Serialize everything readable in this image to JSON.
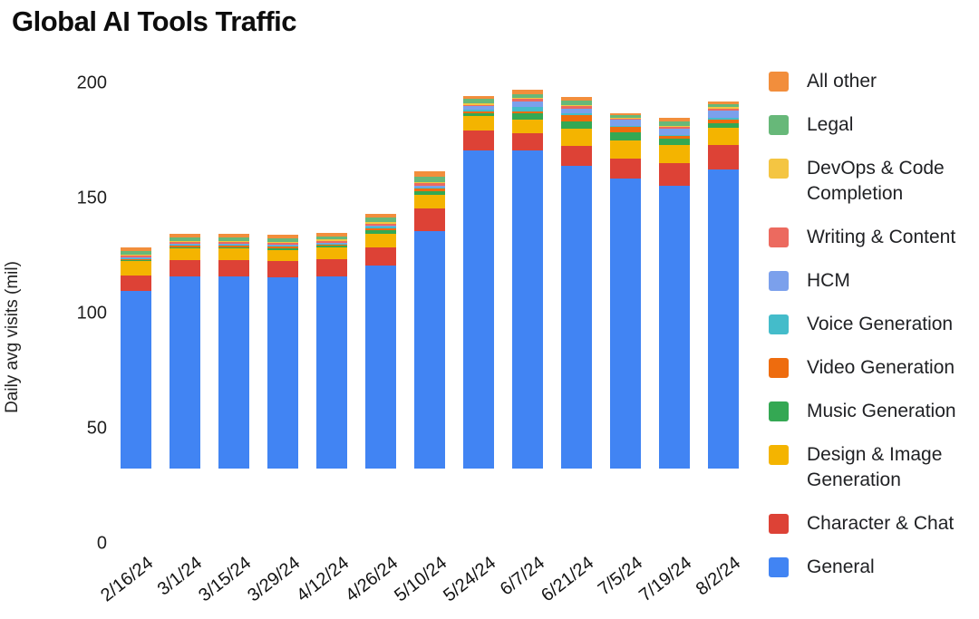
{
  "title": "Global AI Tools Traffic",
  "y_axis_label": "Daily avg visits (mil)",
  "chart_data": {
    "type": "bar",
    "subtype": "stacked-vertical",
    "title": "Global AI Tools Traffic",
    "xlabel": "",
    "ylabel": "Daily avg visits (mil)",
    "ylim": [
      0,
      200
    ],
    "yticks": [
      0,
      50,
      100,
      150,
      200
    ],
    "grid": false,
    "legend_position": "right",
    "categories": [
      "2/16/24",
      "3/1/24",
      "3/15/24",
      "3/29/24",
      "4/12/24",
      "4/26/24",
      "5/10/24",
      "5/24/24",
      "6/7/24",
      "6/21/24",
      "7/5/24",
      "7/19/24",
      "8/2/24"
    ],
    "series": [
      {
        "name": "General",
        "color": "#4184f3",
        "values": [
          77,
          83.5,
          83.5,
          83,
          83.5,
          88,
          103,
          138,
          138,
          131.5,
          126,
          123,
          130
        ]
      },
      {
        "name": "Character & Chat",
        "color": "#dd4236",
        "values": [
          7,
          7,
          7,
          7,
          7.5,
          8,
          10,
          9,
          7.5,
          8.5,
          8.5,
          9.5,
          10.5
        ]
      },
      {
        "name": "Design & Image Generation",
        "color": "#f4b400",
        "values": [
          6,
          5,
          5,
          5,
          5,
          6,
          6,
          6,
          6,
          7.5,
          8,
          8,
          7.5
        ]
      },
      {
        "name": "Music Generation",
        "color": "#34a853",
        "values": [
          0.5,
          0.7,
          0.7,
          0.7,
          0.7,
          1.5,
          1.5,
          1.5,
          3,
          3.5,
          3.5,
          3,
          2
        ]
      },
      {
        "name": "Video Generation",
        "color": "#ee6c0e",
        "values": [
          0.4,
          0.6,
          0.6,
          0.6,
          0.6,
          1,
          1,
          0.5,
          0.5,
          2.5,
          2.5,
          1,
          1.5
        ]
      },
      {
        "name": "Voice Generation",
        "color": "#44bcca",
        "values": [
          0.3,
          0.4,
          0.4,
          0.4,
          0.4,
          0.5,
          0.5,
          1,
          2,
          1,
          0.5,
          0.5,
          1
        ]
      },
      {
        "name": "HCM",
        "color": "#7ba0ec",
        "values": [
          0.4,
          0.5,
          0.5,
          0.5,
          0.5,
          0.5,
          1,
          1.5,
          2.5,
          2,
          2.5,
          2.5,
          3
        ]
      },
      {
        "name": "Writing & Content",
        "color": "#ec6a5f",
        "values": [
          0.8,
          0.8,
          0.8,
          0.8,
          0.8,
          1,
          1,
          0.5,
          1,
          1,
          0.5,
          1,
          1
        ]
      },
      {
        "name": "DevOps & Code Completion",
        "color": "#f4c542",
        "values": [
          0.5,
          0.5,
          0.5,
          0.5,
          0.5,
          0.5,
          0.5,
          0.5,
          0.5,
          0.5,
          0.5,
          0.5,
          0.5
        ]
      },
      {
        "name": "Legal",
        "color": "#67b879",
        "values": [
          1.5,
          1.5,
          1.5,
          1.5,
          1.5,
          2,
          2.5,
          2,
          1.5,
          2,
          1,
          2,
          1.5
        ]
      },
      {
        "name": "All other",
        "color": "#f28e3c",
        "values": [
          1.5,
          1.5,
          1.5,
          1.5,
          1.5,
          1.5,
          2,
          1.5,
          2,
          1.5,
          1,
          1.5,
          1
        ]
      }
    ]
  }
}
